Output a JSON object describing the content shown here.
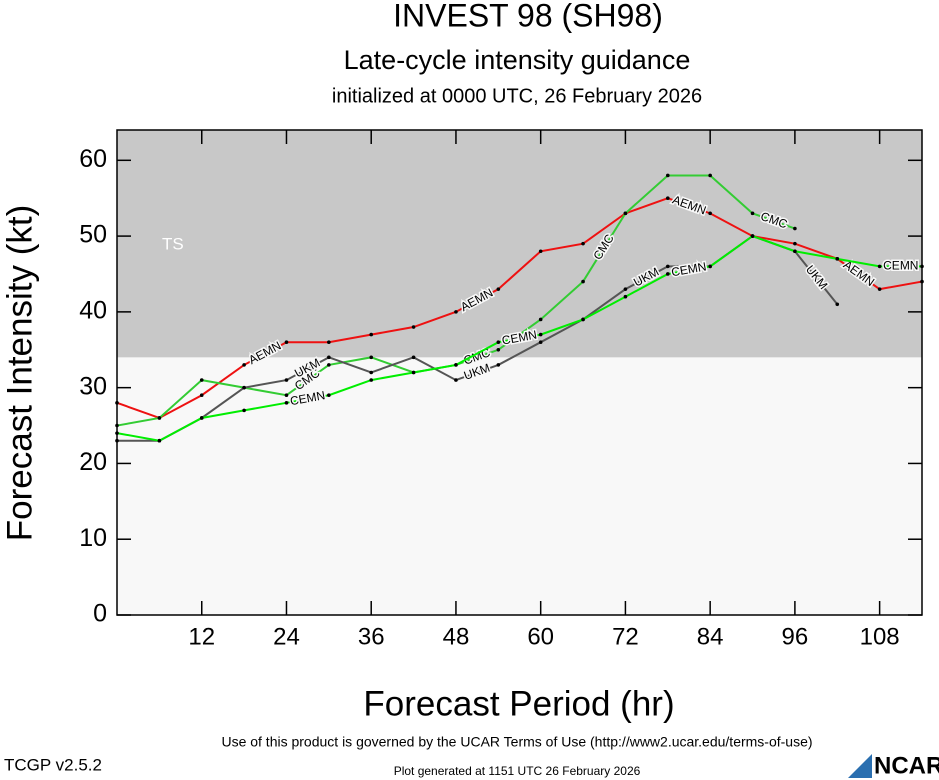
{
  "chart_data": {
    "type": "line",
    "title": "INVEST 98 (SH98)",
    "subtitle": [
      "Late-cycle intensity guidance",
      "initialized at 0000 UTC, 26 February 2026"
    ],
    "x_label": "Forecast Period (hr)",
    "y_label": "Forecast Intensity (kt)",
    "x": [
      0,
      6,
      12,
      18,
      24,
      30,
      36,
      42,
      48,
      54,
      60,
      66,
      72,
      78,
      84,
      90,
      96,
      102,
      108,
      114
    ],
    "xlim": [
      0,
      114
    ],
    "xticks": [
      12,
      24,
      36,
      48,
      60,
      72,
      84,
      96,
      108
    ],
    "ylim": [
      0,
      64
    ],
    "yticks": [
      0,
      10,
      20,
      30,
      40,
      50,
      60
    ],
    "bands": [
      {
        "label": "TS",
        "from": 34,
        "to": 64,
        "color": "#c8c8c8"
      }
    ],
    "series": [
      {
        "name": "AEMN",
        "color": "#ee1111",
        "values": [
          28,
          26,
          29,
          33,
          36,
          36,
          37,
          38,
          40,
          43,
          48,
          49,
          53,
          55,
          53,
          50,
          49,
          47,
          43,
          44
        ]
      },
      {
        "name": "CMC",
        "color": "#33cc33",
        "values": [
          25,
          26,
          31,
          30,
          29,
          33,
          34,
          32,
          33,
          35,
          39,
          44,
          53,
          58,
          58,
          53,
          51,
          null,
          null,
          null
        ]
      },
      {
        "name": "UKM",
        "color": "#555555",
        "values": [
          23,
          23,
          26,
          30,
          31,
          34,
          32,
          34,
          31,
          33,
          36,
          39,
          43,
          46,
          46,
          50,
          48,
          41,
          null,
          null
        ]
      },
      {
        "name": "CEMN",
        "color": "#00ee00",
        "values": [
          24,
          23,
          26,
          27,
          28,
          29,
          31,
          32,
          33,
          36,
          37,
          39,
          42,
          45,
          46,
          50,
          48,
          47,
          46,
          46
        ]
      }
    ]
  },
  "footer": {
    "terms": "Use of this product is governed by the UCAR Terms of Use (http://www2.ucar.edu/terms-of-use)",
    "generated": "Plot generated at 1151 UTC   26 February 2026",
    "version": "TCGP v2.5.2",
    "logo": "NCAR"
  }
}
